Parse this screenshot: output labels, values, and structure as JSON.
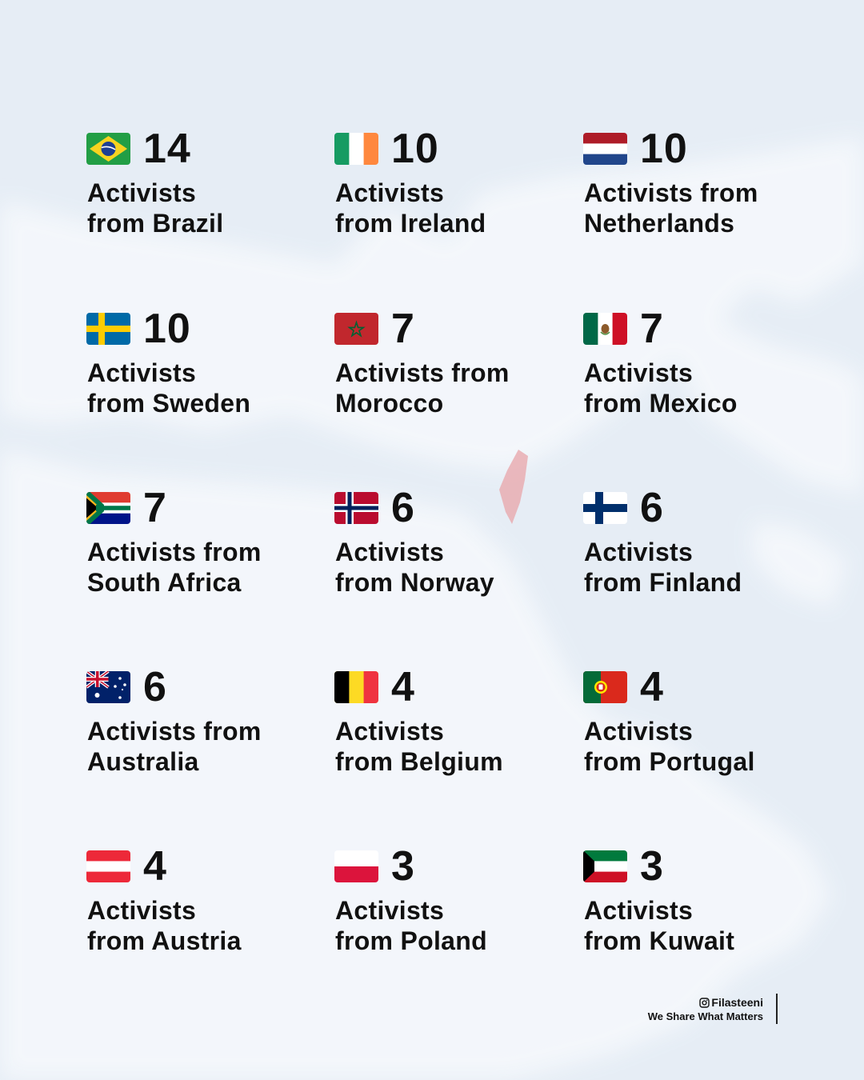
{
  "cards": [
    {
      "flag": "brazil",
      "count": "14",
      "label": "Activists\nfrom Brazil"
    },
    {
      "flag": "ireland",
      "count": "10",
      "label": "Activists\nfrom Ireland"
    },
    {
      "flag": "netherlands",
      "count": "10",
      "label": "Activists from\nNetherlands"
    },
    {
      "flag": "sweden",
      "count": "10",
      "label": "Activists\nfrom Sweden"
    },
    {
      "flag": "morocco",
      "count": "7",
      "label": "Activists from\nMorocco"
    },
    {
      "flag": "mexico",
      "count": "7",
      "label": "Activists\nfrom Mexico"
    },
    {
      "flag": "south-africa",
      "count": "7",
      "label": "Activists from\nSouth Africa"
    },
    {
      "flag": "norway",
      "count": "6",
      "label": "Activists\nfrom Norway"
    },
    {
      "flag": "finland",
      "count": "6",
      "label": "Activists\nfrom Finland"
    },
    {
      "flag": "australia",
      "count": "6",
      "label": "Activists from\nAustralia"
    },
    {
      "flag": "belgium",
      "count": "4",
      "label": "Activists\nfrom Belgium"
    },
    {
      "flag": "portugal",
      "count": "4",
      "label": "Activists\nfrom Portugal"
    },
    {
      "flag": "austria",
      "count": "4",
      "label": "Activists\nfrom Austria"
    },
    {
      "flag": "poland",
      "count": "3",
      "label": "Activists\nfrom Poland"
    },
    {
      "flag": "kuwait",
      "count": "3",
      "label": "Activists\nfrom Kuwait"
    }
  ],
  "footer": {
    "handle": "Filasteeni",
    "tagline": "We Share What Matters"
  },
  "colors": {
    "background": "#e6edf5",
    "land": "#f4f7fb",
    "highlight": "#e8a9ae",
    "text": "#111111"
  }
}
